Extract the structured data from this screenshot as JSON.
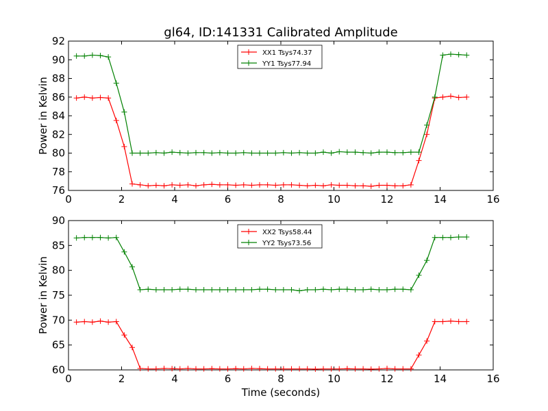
{
  "chart_data": [
    {
      "type": "line",
      "title": "gl64, ID:141331 Calibrated Amplitude",
      "xlabel": "",
      "ylabel": "Power in Kelvin",
      "xlim": [
        0,
        16
      ],
      "ylim": [
        76,
        92
      ],
      "xticks": [
        0,
        2,
        4,
        6,
        8,
        10,
        12,
        14,
        16
      ],
      "yticks": [
        76,
        78,
        80,
        82,
        84,
        86,
        88,
        90,
        92
      ],
      "legend_position": "top-center",
      "x": [
        0.3,
        0.6,
        0.9,
        1.2,
        1.5,
        1.8,
        2.1,
        2.4,
        2.7,
        3.0,
        3.3,
        3.6,
        3.9,
        4.2,
        4.5,
        4.8,
        5.1,
        5.4,
        5.7,
        6.0,
        6.3,
        6.6,
        6.9,
        7.2,
        7.5,
        7.8,
        8.1,
        8.4,
        8.7,
        9.0,
        9.3,
        9.6,
        9.9,
        10.2,
        10.5,
        10.8,
        11.1,
        11.4,
        11.7,
        12.0,
        12.3,
        12.6,
        12.9,
        13.2,
        13.5,
        13.8,
        14.1,
        14.4,
        14.7,
        15.0
      ],
      "series": [
        {
          "name": "XX1 Tsys74.37",
          "color": "#ff0000",
          "values": [
            85.9,
            86.0,
            85.9,
            85.95,
            85.9,
            83.5,
            80.7,
            76.7,
            76.6,
            76.5,
            76.55,
            76.5,
            76.6,
            76.55,
            76.6,
            76.5,
            76.6,
            76.65,
            76.6,
            76.6,
            76.55,
            76.6,
            76.55,
            76.6,
            76.6,
            76.55,
            76.6,
            76.6,
            76.55,
            76.5,
            76.55,
            76.5,
            76.6,
            76.55,
            76.55,
            76.5,
            76.5,
            76.45,
            76.55,
            76.55,
            76.5,
            76.5,
            76.6,
            79.2,
            82.0,
            85.9,
            86.0,
            86.1,
            85.95,
            86.0
          ]
        },
        {
          "name": "YY1 Tsys77.94",
          "color": "#008000",
          "values": [
            90.4,
            90.4,
            90.5,
            90.45,
            90.3,
            87.5,
            84.4,
            80.0,
            80.0,
            80.0,
            80.05,
            80.0,
            80.1,
            80.05,
            80.0,
            80.05,
            80.05,
            80.0,
            80.05,
            80.0,
            80.0,
            80.05,
            80.0,
            80.0,
            80.0,
            80.0,
            80.05,
            80.0,
            80.05,
            80.0,
            80.0,
            80.1,
            80.0,
            80.15,
            80.1,
            80.1,
            80.05,
            80.0,
            80.1,
            80.1,
            80.05,
            80.05,
            80.1,
            80.1,
            83.0,
            86.0,
            90.5,
            90.6,
            90.55,
            90.5
          ]
        }
      ]
    },
    {
      "type": "line",
      "title": "",
      "xlabel": "Time (seconds)",
      "ylabel": "Power in Kelvin",
      "xlim": [
        0,
        16
      ],
      "ylim": [
        60,
        90
      ],
      "xticks": [
        0,
        2,
        4,
        6,
        8,
        10,
        12,
        14,
        16
      ],
      "yticks": [
        60,
        65,
        70,
        75,
        80,
        85,
        90
      ],
      "legend_position": "top-center",
      "x": [
        0.3,
        0.6,
        0.9,
        1.2,
        1.5,
        1.8,
        2.1,
        2.4,
        2.7,
        3.0,
        3.3,
        3.6,
        3.9,
        4.2,
        4.5,
        4.8,
        5.1,
        5.4,
        5.7,
        6.0,
        6.3,
        6.6,
        6.9,
        7.2,
        7.5,
        7.8,
        8.1,
        8.4,
        8.7,
        9.0,
        9.3,
        9.6,
        9.9,
        10.2,
        10.5,
        10.8,
        11.1,
        11.4,
        11.7,
        12.0,
        12.3,
        12.6,
        12.9,
        13.2,
        13.5,
        13.8,
        14.1,
        14.4,
        14.7,
        15.0
      ],
      "series": [
        {
          "name": "XX2 Tsys58.44",
          "color": "#ff0000",
          "values": [
            69.6,
            69.7,
            69.6,
            69.8,
            69.6,
            69.7,
            67.0,
            64.5,
            60.3,
            60.2,
            60.2,
            60.3,
            60.25,
            60.2,
            60.3,
            60.2,
            60.2,
            60.25,
            60.2,
            60.2,
            60.25,
            60.2,
            60.3,
            60.25,
            60.2,
            60.2,
            60.2,
            60.2,
            60.2,
            60.2,
            60.15,
            60.2,
            60.2,
            60.2,
            60.25,
            60.2,
            60.2,
            60.15,
            60.2,
            60.3,
            60.2,
            60.2,
            60.2,
            63.0,
            65.8,
            69.7,
            69.7,
            69.8,
            69.7,
            69.7
          ]
        },
        {
          "name": "YY2 Tsys73.56",
          "color": "#008000",
          "values": [
            86.5,
            86.6,
            86.6,
            86.6,
            86.5,
            86.6,
            83.7,
            80.7,
            76.1,
            76.2,
            76.1,
            76.1,
            76.1,
            76.2,
            76.2,
            76.1,
            76.1,
            76.1,
            76.1,
            76.1,
            76.1,
            76.1,
            76.1,
            76.2,
            76.2,
            76.1,
            76.1,
            76.1,
            75.9,
            76.1,
            76.1,
            76.2,
            76.1,
            76.2,
            76.2,
            76.1,
            76.1,
            76.2,
            76.1,
            76.1,
            76.2,
            76.2,
            76.1,
            79.0,
            82.0,
            86.6,
            86.6,
            86.6,
            86.7,
            86.7
          ]
        }
      ]
    }
  ]
}
